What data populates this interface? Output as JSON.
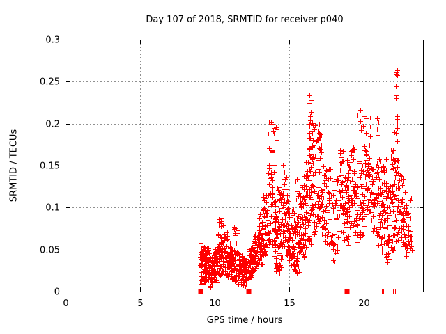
{
  "chart_data": {
    "type": "scatter",
    "title": "Day 107 of 2018, SRMTID for receiver p040",
    "xlabel": "GPS time / hours",
    "ylabel": "SRMTID / TECUs",
    "xlim": [
      0,
      24
    ],
    "ylim": [
      0,
      0.3
    ],
    "xticks": [
      {
        "v": 0,
        "label": "0"
      },
      {
        "v": 5,
        "label": "5"
      },
      {
        "v": 10,
        "label": "10"
      },
      {
        "v": 15,
        "label": "15"
      },
      {
        "v": 20,
        "label": "20"
      }
    ],
    "yticks": [
      {
        "v": 0,
        "label": "0"
      },
      {
        "v": 0.05,
        "label": "0.05"
      },
      {
        "v": 0.1,
        "label": "0.1"
      },
      {
        "v": 0.15,
        "label": "0.15"
      },
      {
        "v": 0.2,
        "label": "0.2"
      },
      {
        "v": 0.25,
        "label": "0.25"
      },
      {
        "v": 0.3,
        "label": "0.3"
      }
    ],
    "grid": true,
    "legend": "none",
    "marker": "plus",
    "marker_size_px": 7,
    "marker_color": "#ff0000",
    "grid_color": "#909090",
    "border_color": "#000000",
    "seed": 42,
    "point_clusters_x0_x1_ymin_ymax_n": [
      [
        9.0,
        9.35,
        0.008,
        0.058,
        60
      ],
      [
        9.3,
        9.65,
        0.012,
        0.052,
        50
      ],
      [
        9.65,
        9.95,
        0.005,
        0.042,
        45
      ],
      [
        9.95,
        10.2,
        0.01,
        0.052,
        40
      ],
      [
        10.2,
        10.5,
        0.018,
        0.068,
        50
      ],
      [
        10.25,
        10.6,
        0.07,
        0.088,
        9
      ],
      [
        10.5,
        10.85,
        0.02,
        0.072,
        55
      ],
      [
        10.85,
        11.15,
        0.015,
        0.058,
        45
      ],
      [
        11.15,
        11.5,
        0.01,
        0.05,
        45
      ],
      [
        11.3,
        11.65,
        0.055,
        0.078,
        8
      ],
      [
        11.5,
        11.85,
        0.008,
        0.046,
        50
      ],
      [
        11.85,
        12.15,
        0.005,
        0.04,
        40
      ],
      [
        12.2,
        12.55,
        0.015,
        0.052,
        45
      ],
      [
        12.55,
        12.9,
        0.025,
        0.07,
        48
      ],
      [
        12.9,
        13.25,
        0.03,
        0.092,
        50
      ],
      [
        13.25,
        13.55,
        0.04,
        0.115,
        45
      ],
      [
        13.55,
        13.85,
        0.05,
        0.12,
        22
      ],
      [
        13.55,
        13.85,
        0.125,
        0.205,
        20
      ],
      [
        13.85,
        14.15,
        0.05,
        0.125,
        25
      ],
      [
        13.9,
        14.15,
        0.13,
        0.2,
        8
      ],
      [
        14.0,
        14.5,
        0.02,
        0.1,
        60
      ],
      [
        14.15,
        14.45,
        0.105,
        0.125,
        14
      ],
      [
        14.5,
        14.9,
        0.04,
        0.12,
        50
      ],
      [
        14.55,
        14.9,
        0.12,
        0.152,
        8
      ],
      [
        14.9,
        15.3,
        0.03,
        0.1,
        55
      ],
      [
        15.35,
        15.65,
        0.1,
        0.135,
        6
      ],
      [
        15.3,
        15.7,
        0.02,
        0.09,
        55
      ],
      [
        15.7,
        16.1,
        0.04,
        0.115,
        55
      ],
      [
        15.8,
        16.25,
        0.1,
        0.138,
        12
      ],
      [
        16.1,
        16.45,
        0.05,
        0.16,
        45
      ],
      [
        16.3,
        16.55,
        0.16,
        0.235,
        18
      ],
      [
        16.45,
        16.8,
        0.06,
        0.2,
        48
      ],
      [
        16.8,
        17.15,
        0.08,
        0.2,
        40
      ],
      [
        17.15,
        17.5,
        0.06,
        0.15,
        32
      ],
      [
        17.5,
        17.9,
        0.05,
        0.12,
        22
      ],
      [
        17.55,
        17.85,
        0.12,
        0.16,
        6
      ],
      [
        17.9,
        18.3,
        0.035,
        0.135,
        32
      ],
      [
        18.3,
        18.65,
        0.07,
        0.17,
        38
      ],
      [
        18.65,
        19.0,
        0.055,
        0.14,
        42
      ],
      [
        18.7,
        19.0,
        0.14,
        0.18,
        10
      ],
      [
        19.0,
        19.35,
        0.07,
        0.175,
        40
      ],
      [
        19.35,
        19.7,
        0.055,
        0.13,
        28
      ],
      [
        19.55,
        19.8,
        0.19,
        0.22,
        5
      ],
      [
        19.7,
        20.05,
        0.06,
        0.165,
        40
      ],
      [
        19.95,
        20.45,
        0.165,
        0.21,
        12
      ],
      [
        20.05,
        20.45,
        0.09,
        0.165,
        38
      ],
      [
        20.45,
        20.8,
        0.07,
        0.15,
        35
      ],
      [
        20.8,
        21.15,
        0.05,
        0.16,
        45
      ],
      [
        20.85,
        21.15,
        0.185,
        0.21,
        6
      ],
      [
        21.15,
        21.5,
        0.04,
        0.158,
        52
      ],
      [
        21.5,
        21.8,
        0.03,
        0.13,
        40
      ],
      [
        21.8,
        22.1,
        0.04,
        0.17,
        45
      ],
      [
        22.0,
        22.3,
        0.15,
        0.21,
        10
      ],
      [
        22.05,
        22.25,
        0.225,
        0.245,
        3
      ],
      [
        22.1,
        22.3,
        0.255,
        0.27,
        4
      ],
      [
        22.1,
        22.45,
        0.05,
        0.15,
        42
      ],
      [
        22.45,
        22.8,
        0.05,
        0.138,
        40
      ],
      [
        22.8,
        23.2,
        0.04,
        0.115,
        35
      ]
    ],
    "zero_line_square_markers_hours": [
      9.07,
      12.28,
      18.87
    ],
    "zero_line_cross_markers_hours": [
      21.22,
      21.3,
      21.93,
      22.0,
      22.07
    ]
  }
}
